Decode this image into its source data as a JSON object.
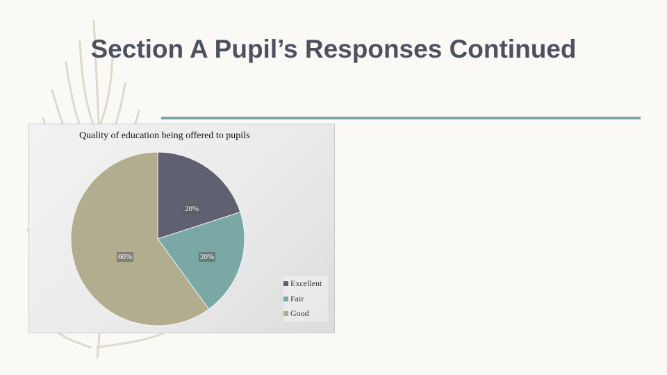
{
  "slide": {
    "title": "Section A Pupil’s Responses Continued"
  },
  "colors": {
    "title_text": "#4c5160",
    "title_rule": "#7aa8a5",
    "feather": "#d9d6c8"
  },
  "chart_data": {
    "type": "pie",
    "title": "Quality of education being offered to pupils",
    "categories": [
      "Excellent",
      "Fair",
      "Good"
    ],
    "values": [
      20,
      20,
      60
    ],
    "labels": [
      "20%",
      "20%",
      "60%"
    ],
    "colors": [
      "#5f6070",
      "#7aa8a5",
      "#b1ad8e"
    ],
    "legend_position": "bottom-right",
    "start_angle": "12 o'clock",
    "direction": "clockwise"
  }
}
